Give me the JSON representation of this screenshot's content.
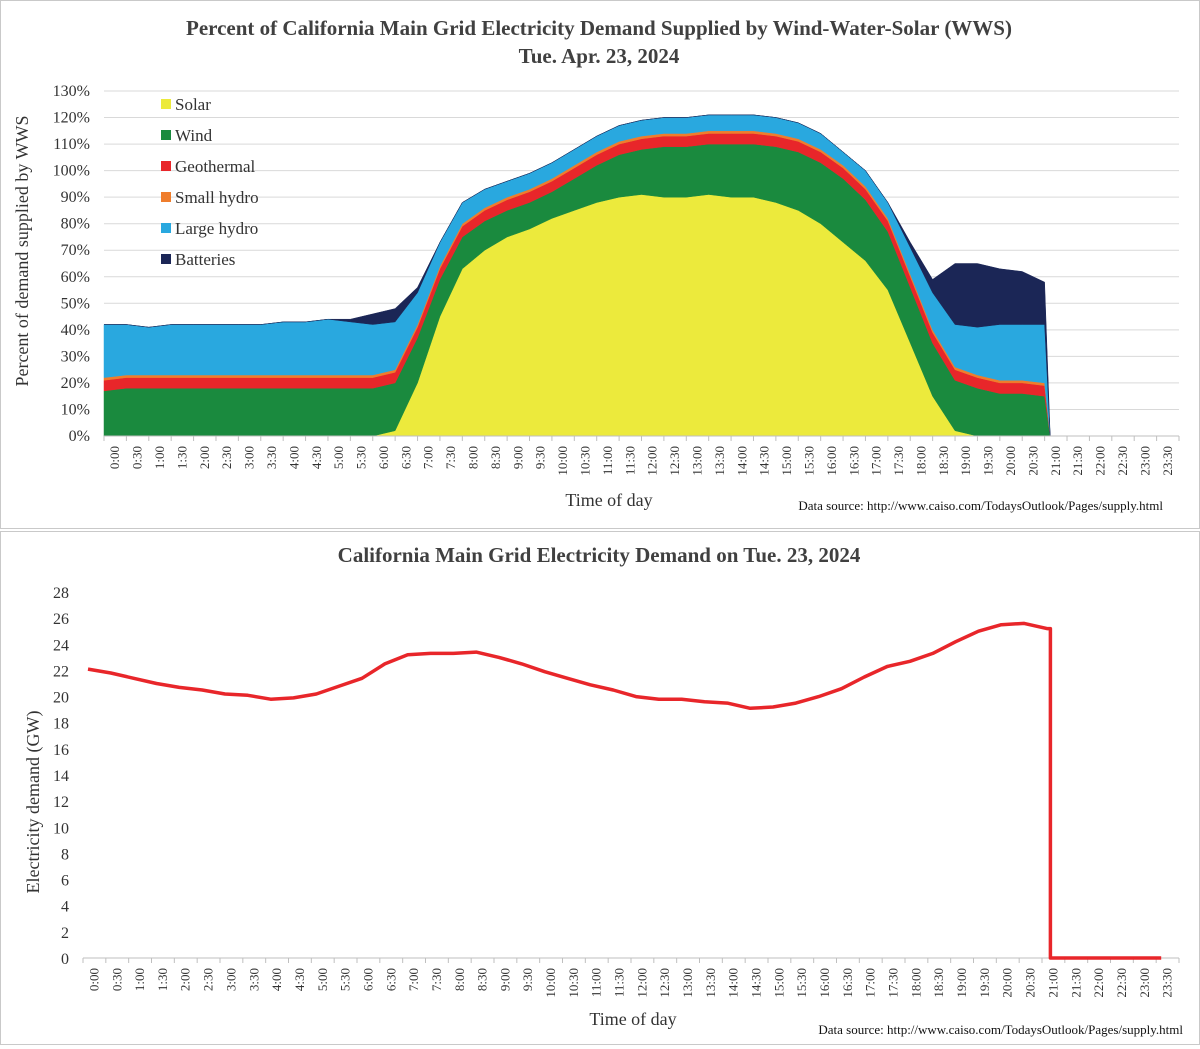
{
  "chart_data": [
    {
      "type": "area",
      "title": "Percent of California Main Grid Electricity Demand Supplied by Wind-Water-Solar (WWS)",
      "subtitle": "Tue. Apr. 23, 2024",
      "xlabel": "Time of day",
      "ylabel": "Percent of demand supplied by WWS",
      "source": "Data source: http://www.caiso.com/TodaysOutlook/Pages/supply.html",
      "ylim": [
        0,
        130
      ],
      "yticks": [
        "0%",
        "10%",
        "20%",
        "30%",
        "40%",
        "50%",
        "60%",
        "70%",
        "80%",
        "90%",
        "100%",
        "110%",
        "120%",
        "130%"
      ],
      "grid": true,
      "legend_position": "top-left",
      "x": [
        "0:00",
        "0:30",
        "1:00",
        "1:30",
        "2:00",
        "2:30",
        "3:00",
        "3:30",
        "4:00",
        "4:30",
        "5:00",
        "5:30",
        "6:00",
        "6:30",
        "7:00",
        "7:30",
        "8:00",
        "8:30",
        "9:00",
        "9:30",
        "10:00",
        "10:30",
        "11:00",
        "11:30",
        "12:00",
        "12:30",
        "13:00",
        "13:30",
        "14:00",
        "14:30",
        "15:00",
        "15:30",
        "16:00",
        "16:30",
        "17:00",
        "17:30",
        "18:00",
        "18:30",
        "19:00",
        "19:30",
        "20:00",
        "20:30",
        "21:00",
        "21:30",
        "22:00",
        "22:30",
        "23:00",
        "23:30"
      ],
      "series": [
        {
          "name": "Solar",
          "color": "#ecea3c",
          "values": [
            0,
            0,
            0,
            0,
            0,
            0,
            0,
            0,
            0,
            0,
            0,
            0,
            0,
            2,
            20,
            45,
            63,
            70,
            75,
            78,
            82,
            85,
            88,
            90,
            91,
            90,
            90,
            91,
            90,
            90,
            88,
            85,
            80,
            73,
            66,
            55,
            35,
            15,
            2,
            0,
            0,
            0,
            0,
            null,
            null,
            null,
            null,
            null
          ]
        },
        {
          "name": "Wind",
          "color": "#1a8a3e",
          "values": [
            17,
            18,
            18,
            18,
            18,
            18,
            18,
            18,
            18,
            18,
            18,
            18,
            18,
            18,
            17,
            14,
            12,
            11,
            10,
            10,
            10,
            12,
            14,
            16,
            17,
            19,
            19,
            19,
            20,
            20,
            21,
            22,
            23,
            24,
            23,
            22,
            21,
            20,
            19,
            18,
            16,
            16,
            15,
            null,
            null,
            null,
            null,
            null
          ]
        },
        {
          "name": "Geothermal",
          "color": "#e8262a",
          "values": [
            4,
            4,
            4,
            4,
            4,
            4,
            4,
            4,
            4,
            4,
            4,
            4,
            4,
            4,
            4,
            4,
            4,
            4,
            4,
            4,
            4,
            4,
            4,
            4,
            4,
            4,
            4,
            4,
            4,
            4,
            4,
            4,
            4,
            4,
            4,
            4,
            4,
            4,
            4,
            4,
            4,
            4,
            4,
            null,
            null,
            null,
            null,
            null
          ]
        },
        {
          "name": "Small hydro",
          "color": "#ef7d2c",
          "values": [
            1,
            1,
            1,
            1,
            1,
            1,
            1,
            1,
            1,
            1,
            1,
            1,
            1,
            1,
            1,
            1,
            1,
            1,
            1,
            1,
            1,
            1,
            1,
            1,
            1,
            1,
            1,
            1,
            1,
            1,
            1,
            1,
            1,
            1,
            1,
            1,
            1,
            1,
            1,
            1,
            1,
            1,
            1,
            null,
            null,
            null,
            null,
            null
          ]
        },
        {
          "name": "Large hydro",
          "color": "#29a8df",
          "values": [
            20,
            19,
            18,
            19,
            19,
            19,
            19,
            19,
            20,
            20,
            21,
            20,
            19,
            18,
            12,
            9,
            8,
            7,
            6,
            6,
            6,
            6,
            6,
            6,
            6,
            6,
            6,
            6,
            6,
            6,
            6,
            6,
            6,
            5,
            6,
            6,
            10,
            14,
            16,
            18,
            21,
            21,
            22,
            null,
            null,
            null,
            null,
            null
          ]
        },
        {
          "name": "Batteries",
          "color": "#1b2656",
          "values": [
            0,
            0,
            0,
            0,
            0,
            0,
            0,
            0,
            0,
            0,
            0,
            1,
            4,
            5,
            2,
            0,
            0,
            0,
            0,
            0,
            0,
            0,
            0,
            0,
            0,
            0,
            0,
            0,
            0,
            0,
            0,
            0,
            0,
            0,
            0,
            0,
            2,
            5,
            23,
            24,
            21,
            20,
            16,
            null,
            null,
            null,
            null,
            null
          ]
        }
      ]
    },
    {
      "type": "line",
      "title": "California Main Grid Electricity Demand on Tue. 23, 2024",
      "xlabel": "Time of day",
      "ylabel": "Electricity demand (GW)",
      "source": "Data source: http://www.caiso.com/TodaysOutlook/Pages/supply.html",
      "ylim": [
        0,
        28
      ],
      "yticks": [
        "0",
        "2",
        "4",
        "6",
        "8",
        "10",
        "12",
        "14",
        "16",
        "18",
        "20",
        "22",
        "24",
        "26",
        "28"
      ],
      "grid": false,
      "x": [
        "0:00",
        "0:30",
        "1:00",
        "1:30",
        "2:00",
        "2:30",
        "3:00",
        "3:30",
        "4:00",
        "4:30",
        "5:00",
        "5:30",
        "6:00",
        "6:30",
        "7:00",
        "7:30",
        "8:00",
        "8:30",
        "9:00",
        "9:30",
        "10:00",
        "10:30",
        "11:00",
        "11:30",
        "12:00",
        "12:30",
        "13:00",
        "13:30",
        "14:00",
        "14:30",
        "15:00",
        "15:30",
        "16:00",
        "16:30",
        "17:00",
        "17:30",
        "18:00",
        "18:30",
        "19:00",
        "19:30",
        "20:00",
        "20:30",
        "21:00",
        "21:30",
        "22:00",
        "22:30",
        "23:00",
        "23:30"
      ],
      "series": [
        {
          "name": "Demand",
          "color": "#e8262a",
          "values": [
            22.1,
            21.8,
            21.4,
            21.0,
            20.7,
            20.5,
            20.2,
            20.1,
            19.8,
            19.9,
            20.2,
            20.8,
            21.4,
            22.5,
            23.2,
            23.3,
            23.3,
            23.4,
            23.0,
            22.5,
            21.9,
            21.4,
            20.9,
            20.5,
            20.0,
            19.8,
            19.8,
            19.6,
            19.5,
            19.1,
            19.2,
            19.5,
            20.0,
            20.6,
            21.5,
            22.3,
            22.7,
            23.3,
            24.2,
            25.0,
            25.5,
            25.6,
            25.2,
            0,
            0,
            0,
            0,
            0
          ]
        }
      ]
    }
  ]
}
